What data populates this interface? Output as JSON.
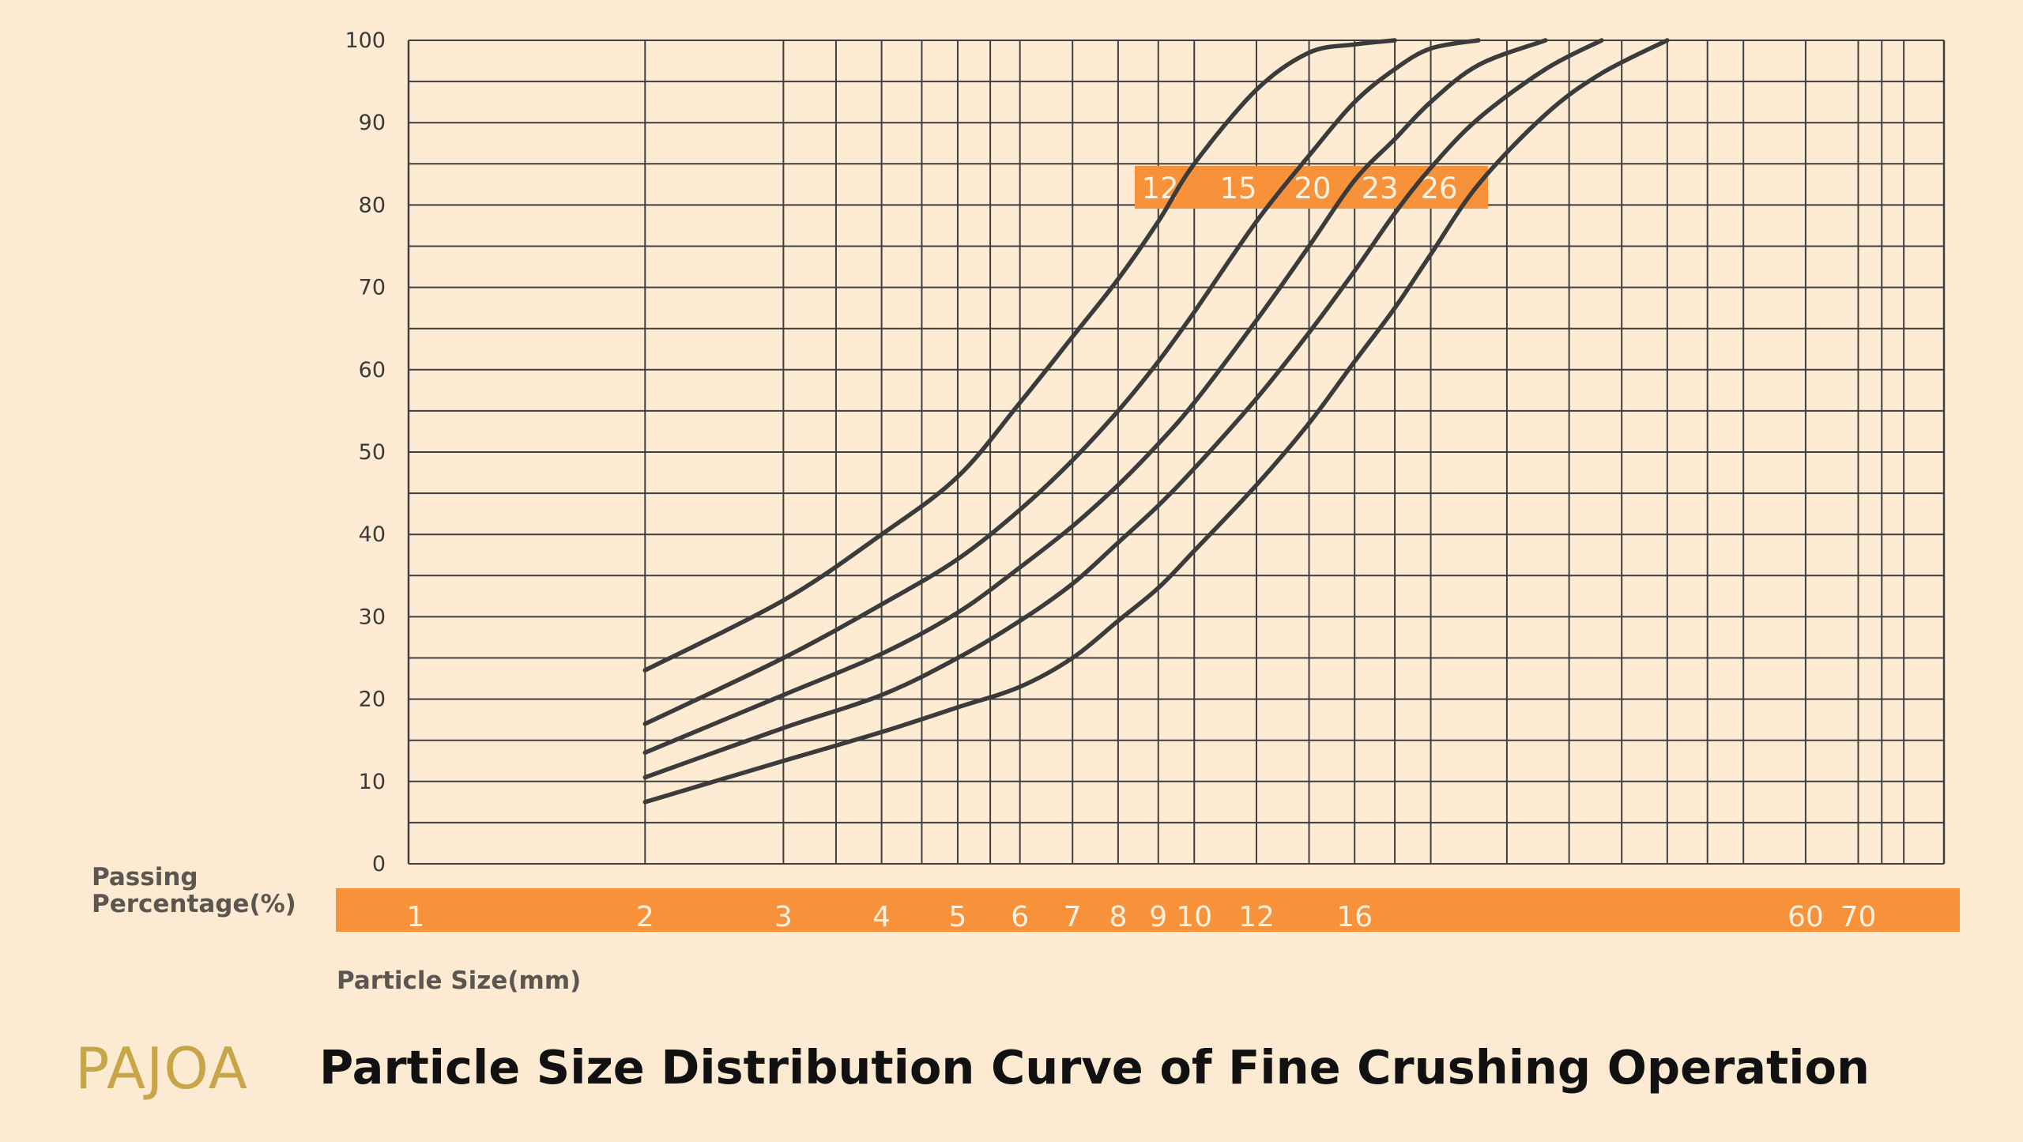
{
  "brand": "PAJOA",
  "page_title": "Particle Size Distribution Curve of Fine Crushing Operation",
  "colors": {
    "background": "#fcebd2",
    "plot_background": "#fdebd4",
    "grid": "#3f3f3f",
    "curve": "#3b3b3b",
    "accent_band": "#f7923a",
    "brand": "#c6a648"
  },
  "chart_data": {
    "type": "line",
    "title": "",
    "xlabel": "Particle Size(mm)",
    "ylabel": "Passing Percentage(%)",
    "x_scale": "log",
    "xlim": [
      1,
      90
    ],
    "ylim": [
      0,
      100
    ],
    "grid": true,
    "y_ticks": [
      0,
      10,
      20,
      30,
      40,
      50,
      60,
      70,
      80,
      90,
      100
    ],
    "x_tick_labels": [
      "1",
      "2",
      "3",
      "4",
      "5",
      "6",
      "7",
      "8",
      "9",
      "10",
      "12",
      "16",
      "60",
      "70"
    ],
    "x_tick_values": [
      1,
      2,
      3,
      4,
      5,
      6,
      7,
      8,
      9,
      10,
      12,
      16,
      60,
      70
    ],
    "x_gridlines": [
      2,
      3,
      3.5,
      4,
      4.5,
      5,
      5.5,
      6,
      7,
      8,
      9,
      10,
      12,
      14,
      16,
      18,
      20,
      25,
      30,
      35,
      40,
      45,
      50,
      60,
      70,
      75,
      80,
      90
    ],
    "series_label_header": [
      "12",
      "15",
      "20",
      "23",
      "26"
    ],
    "series": [
      {
        "name": "12",
        "x": [
          2,
          3,
          4,
          5,
          6,
          7,
          8,
          9,
          10,
          12,
          14,
          16,
          18
        ],
        "y": [
          23.5,
          32,
          40,
          47,
          56,
          64,
          71,
          78,
          85,
          94,
          98.5,
          99.5,
          100
        ]
      },
      {
        "name": "15",
        "x": [
          2,
          3,
          4,
          5,
          6,
          7,
          8,
          9,
          10,
          12,
          14,
          16,
          18,
          20,
          23
        ],
        "y": [
          17,
          25,
          31.5,
          37,
          43,
          49,
          55,
          61,
          67,
          78,
          86,
          92.5,
          96.5,
          99,
          100
        ]
      },
      {
        "name": "20",
        "x": [
          2,
          3,
          4,
          5,
          6,
          7,
          8,
          9,
          10,
          12,
          14,
          16,
          18,
          20,
          23,
          28
        ],
        "y": [
          13.5,
          20.5,
          25.5,
          30.5,
          36,
          41,
          46,
          51,
          56,
          66,
          75,
          83,
          88,
          92.5,
          97,
          100
        ]
      },
      {
        "name": "23",
        "x": [
          2,
          3,
          4,
          5,
          6,
          7,
          8,
          9,
          10,
          12,
          14,
          16,
          18,
          20,
          23,
          28,
          33
        ],
        "y": [
          10.5,
          16.5,
          20.5,
          25,
          29.5,
          34,
          39,
          43.5,
          48,
          56.5,
          64.5,
          72,
          79,
          84.5,
          90.5,
          96.5,
          100
        ]
      },
      {
        "name": "26",
        "x": [
          2,
          3,
          4,
          5,
          6,
          7,
          8,
          9,
          10,
          12,
          14,
          16,
          18,
          20,
          23,
          28,
          33,
          40
        ],
        "y": [
          7.5,
          12.5,
          16,
          19,
          21.5,
          25,
          29.5,
          33.5,
          38,
          46,
          53.5,
          61,
          67.5,
          74,
          82.5,
          91,
          96,
          100
        ]
      }
    ]
  }
}
